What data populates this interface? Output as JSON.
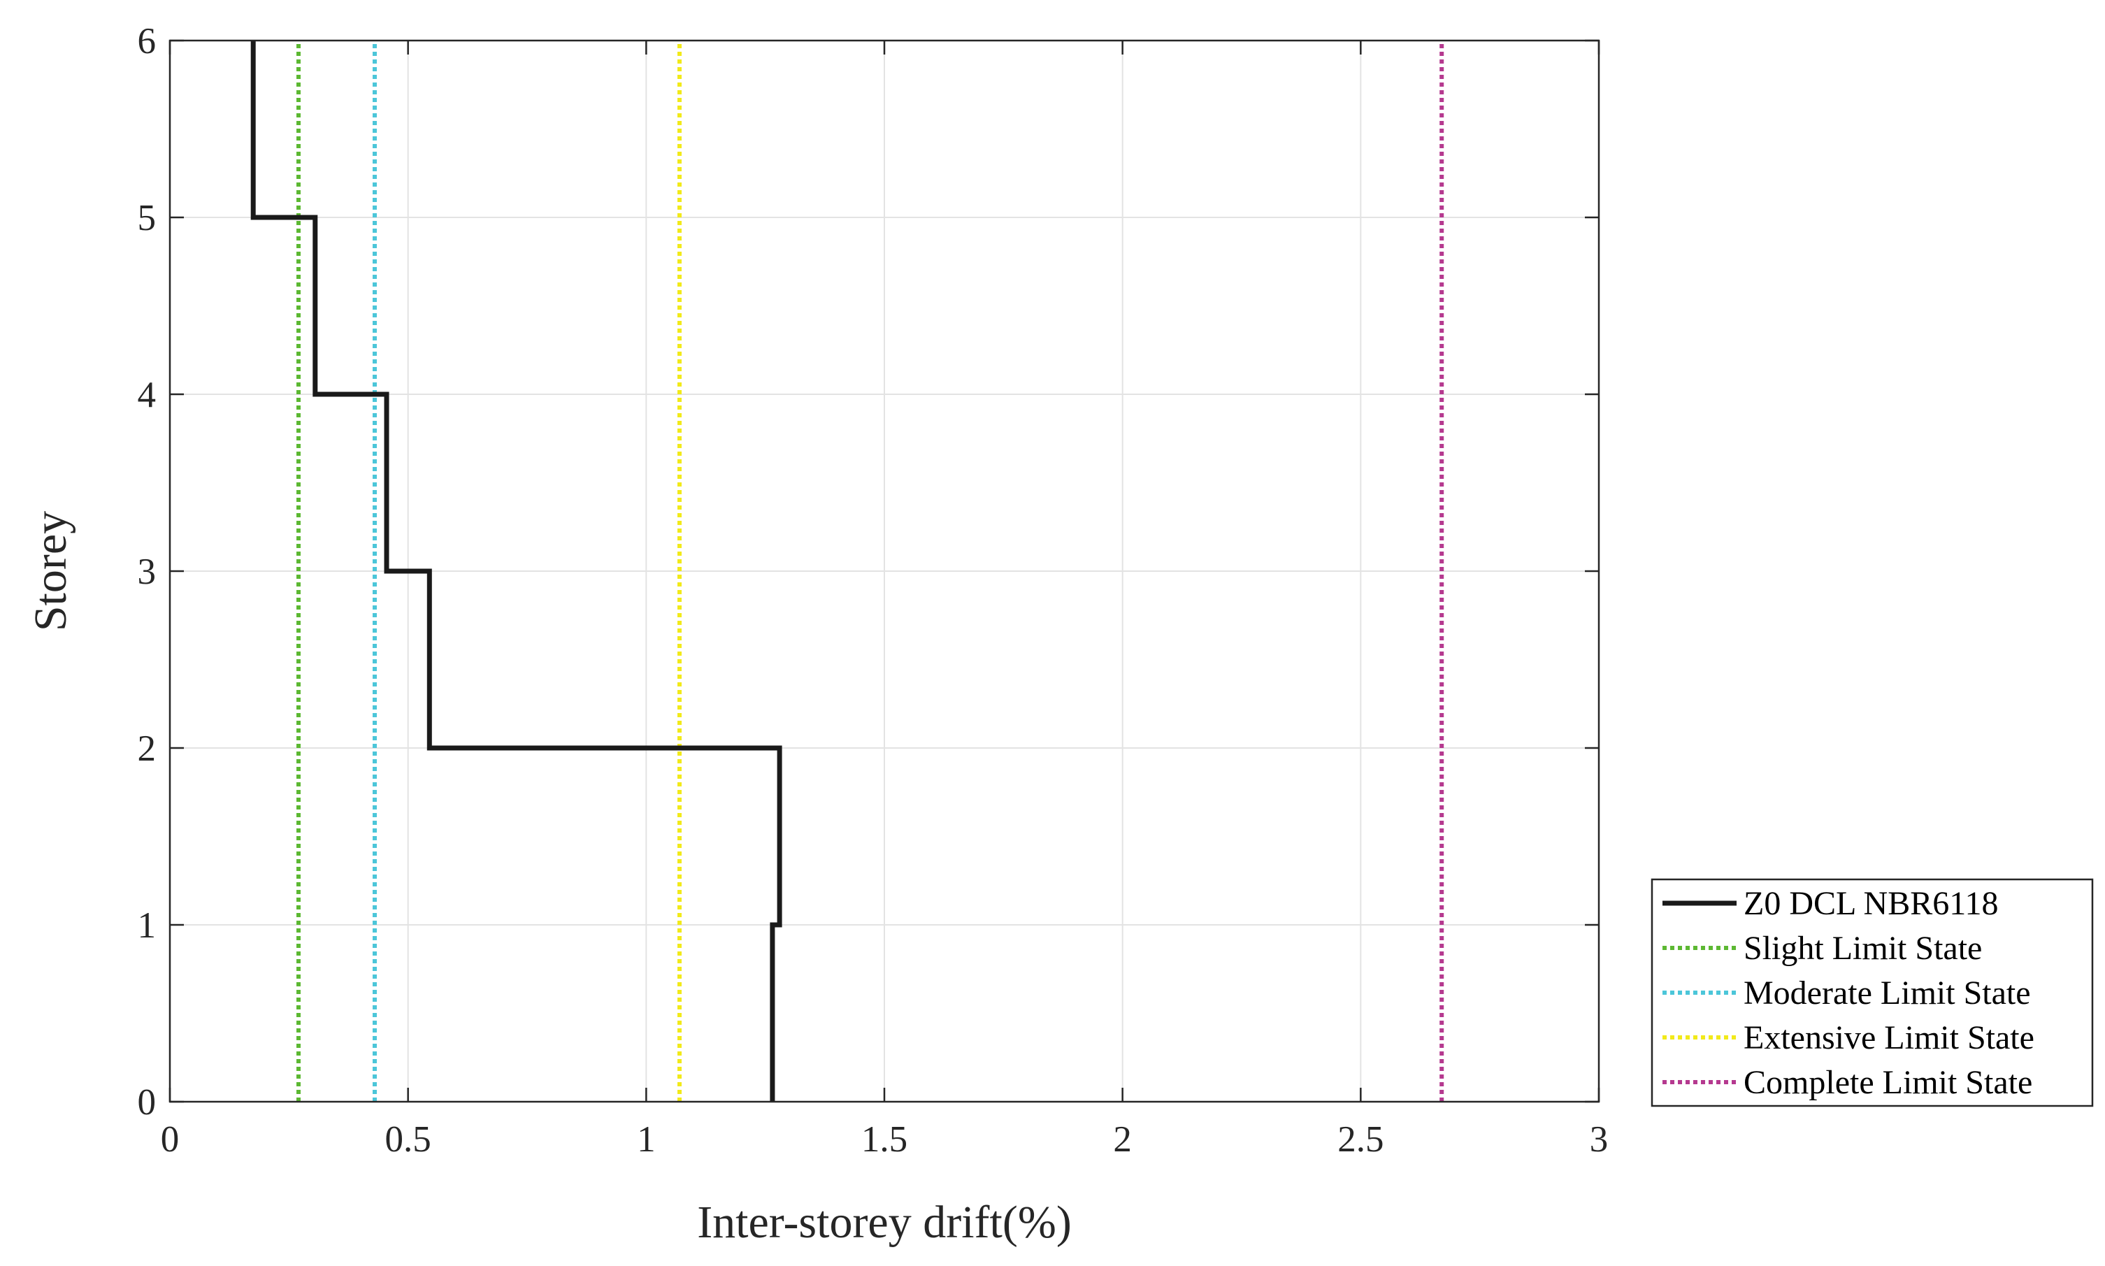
{
  "chart_data": {
    "type": "line",
    "title": "",
    "xlabel": "Inter-storey drift(%)",
    "ylabel": "Storey",
    "xlim": [
      0,
      3
    ],
    "ylim": [
      0,
      6
    ],
    "xticks": [
      0,
      0.5,
      1,
      1.5,
      2,
      2.5,
      3
    ],
    "xtick_labels": [
      "0",
      "0.5",
      "1",
      "1.5",
      "2",
      "2.5",
      "3"
    ],
    "yticks": [
      0,
      1,
      2,
      3,
      4,
      5,
      6
    ],
    "ytick_labels": [
      "0",
      "1",
      "2",
      "3",
      "4",
      "5",
      "6"
    ],
    "grid": true,
    "legend_position": "outside-bottom-right",
    "series": [
      {
        "name": "Z0 DCL NBR6118",
        "color": "#1a1a1a",
        "style": "solid",
        "x": [
          1.265,
          1.265,
          1.28,
          1.28,
          0.545,
          0.545,
          0.455,
          0.455,
          0.305,
          0.305,
          0.175,
          0.175
        ],
        "y": [
          0,
          1,
          1,
          2,
          2,
          3,
          3,
          4,
          4,
          5,
          5,
          6
        ]
      },
      {
        "name": "Slight Limit State",
        "color": "#5cb832",
        "style": "dotted",
        "x": [
          0.27,
          0.27
        ],
        "y": [
          0,
          6
        ]
      },
      {
        "name": "Moderate Limit State",
        "color": "#4cc6d9",
        "style": "dotted",
        "x": [
          0.43,
          0.43
        ],
        "y": [
          0,
          6
        ]
      },
      {
        "name": "Extensive Limit State",
        "color": "#f2ea1a",
        "style": "dotted",
        "x": [
          1.07,
          1.07
        ],
        "y": [
          0,
          6
        ]
      },
      {
        "name": "Complete Limit State",
        "color": "#b5398f",
        "style": "dotted",
        "x": [
          2.67,
          2.67
        ],
        "y": [
          0,
          6
        ]
      }
    ]
  }
}
